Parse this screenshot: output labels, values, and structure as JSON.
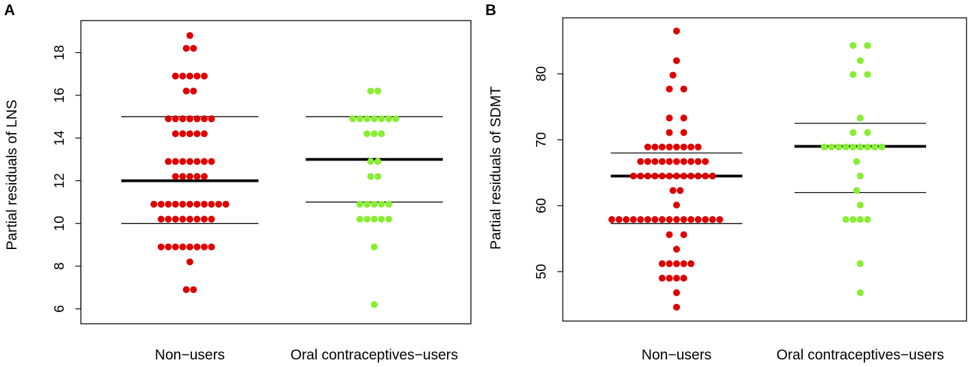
{
  "chart_data": [
    {
      "panel": "A",
      "type": "scatter",
      "ylabel": "Partial residuals of LNS",
      "xlabel": "",
      "ylim": [
        5.3,
        19.5
      ],
      "yticks": [
        6,
        8,
        10,
        12,
        14,
        16,
        18
      ],
      "categories": [
        "Non−users",
        "Oral contraceptives−users"
      ],
      "series": [
        {
          "name": "Non−users",
          "color": "#dd0000",
          "points": [
            {
              "x": 0.0,
              "y": 18.8
            },
            {
              "x": -0.25,
              "y": 18.2
            },
            {
              "x": 0.25,
              "y": 18.2
            },
            {
              "x": -1.0,
              "y": 16.9
            },
            {
              "x": -0.5,
              "y": 16.9
            },
            {
              "x": 0.0,
              "y": 16.9
            },
            {
              "x": 0.5,
              "y": 16.9
            },
            {
              "x": 1.0,
              "y": 16.9
            },
            {
              "x": -0.25,
              "y": 16.2
            },
            {
              "x": 0.25,
              "y": 16.2
            },
            {
              "x": -1.5,
              "y": 14.9
            },
            {
              "x": -1.0,
              "y": 14.9
            },
            {
              "x": -0.5,
              "y": 14.9
            },
            {
              "x": 0.0,
              "y": 14.9
            },
            {
              "x": 0.5,
              "y": 14.9
            },
            {
              "x": 1.0,
              "y": 14.9
            },
            {
              "x": 1.5,
              "y": 14.9
            },
            {
              "x": -1.0,
              "y": 14.2
            },
            {
              "x": -0.5,
              "y": 14.2
            },
            {
              "x": 0.0,
              "y": 14.2
            },
            {
              "x": 0.5,
              "y": 14.2
            },
            {
              "x": 1.0,
              "y": 14.2
            },
            {
              "x": -1.5,
              "y": 12.9
            },
            {
              "x": -1.0,
              "y": 12.9
            },
            {
              "x": -0.5,
              "y": 12.9
            },
            {
              "x": 0.0,
              "y": 12.9
            },
            {
              "x": 0.5,
              "y": 12.9
            },
            {
              "x": 1.0,
              "y": 12.9
            },
            {
              "x": 1.5,
              "y": 12.9
            },
            {
              "x": -1.0,
              "y": 12.2
            },
            {
              "x": -0.5,
              "y": 12.2
            },
            {
              "x": 0.0,
              "y": 12.2
            },
            {
              "x": 0.5,
              "y": 12.2
            },
            {
              "x": 1.0,
              "y": 12.2
            },
            {
              "x": -2.5,
              "y": 10.9
            },
            {
              "x": -2.0,
              "y": 10.9
            },
            {
              "x": -1.5,
              "y": 10.9
            },
            {
              "x": -1.0,
              "y": 10.9
            },
            {
              "x": -0.5,
              "y": 10.9
            },
            {
              "x": 0.0,
              "y": 10.9
            },
            {
              "x": 0.5,
              "y": 10.9
            },
            {
              "x": 1.0,
              "y": 10.9
            },
            {
              "x": 1.5,
              "y": 10.9
            },
            {
              "x": 2.0,
              "y": 10.9
            },
            {
              "x": 2.5,
              "y": 10.9
            },
            {
              "x": -2.0,
              "y": 10.2
            },
            {
              "x": -1.5,
              "y": 10.2
            },
            {
              "x": -1.0,
              "y": 10.2
            },
            {
              "x": -0.5,
              "y": 10.2
            },
            {
              "x": 0.0,
              "y": 10.2
            },
            {
              "x": 0.5,
              "y": 10.2
            },
            {
              "x": 1.0,
              "y": 10.2
            },
            {
              "x": 1.5,
              "y": 10.2
            },
            {
              "x": -2.0,
              "y": 8.9
            },
            {
              "x": -1.5,
              "y": 8.9
            },
            {
              "x": -1.0,
              "y": 8.9
            },
            {
              "x": -0.5,
              "y": 8.9
            },
            {
              "x": 0.0,
              "y": 8.9
            },
            {
              "x": 0.5,
              "y": 8.9
            },
            {
              "x": 1.0,
              "y": 8.9
            },
            {
              "x": 1.5,
              "y": 8.9
            },
            {
              "x": 0.0,
              "y": 8.2
            },
            {
              "x": -0.25,
              "y": 6.9
            },
            {
              "x": 0.25,
              "y": 6.9
            }
          ],
          "mean": 12.0,
          "upper": 15.0,
          "lower": 10.0
        },
        {
          "name": "Oral contraceptives−users",
          "color": "#88ee33",
          "points": [
            {
              "x": -0.25,
              "y": 16.2
            },
            {
              "x": 0.25,
              "y": 16.2
            },
            {
              "x": -1.5,
              "y": 14.9
            },
            {
              "x": -1.0,
              "y": 14.9
            },
            {
              "x": -0.5,
              "y": 14.9
            },
            {
              "x": 0.0,
              "y": 14.9
            },
            {
              "x": 0.5,
              "y": 14.9
            },
            {
              "x": 1.0,
              "y": 14.9
            },
            {
              "x": 1.5,
              "y": 14.9
            },
            {
              "x": -0.5,
              "y": 14.2
            },
            {
              "x": 0.0,
              "y": 14.2
            },
            {
              "x": 0.5,
              "y": 14.2
            },
            {
              "x": -0.25,
              "y": 12.9
            },
            {
              "x": 0.25,
              "y": 12.9
            },
            {
              "x": -0.25,
              "y": 12.2
            },
            {
              "x": 0.25,
              "y": 12.2
            },
            {
              "x": -1.0,
              "y": 10.9
            },
            {
              "x": -0.5,
              "y": 10.9
            },
            {
              "x": 0.0,
              "y": 10.9
            },
            {
              "x": 0.5,
              "y": 10.9
            },
            {
              "x": 1.0,
              "y": 10.9
            },
            {
              "x": -1.0,
              "y": 10.2
            },
            {
              "x": -0.5,
              "y": 10.2
            },
            {
              "x": 0.0,
              "y": 10.2
            },
            {
              "x": 0.5,
              "y": 10.2
            },
            {
              "x": 1.0,
              "y": 10.2
            },
            {
              "x": 0.0,
              "y": 8.9
            },
            {
              "x": 0.0,
              "y": 6.2
            }
          ],
          "mean": 13.0,
          "upper": 15.0,
          "lower": 11.0
        }
      ]
    },
    {
      "panel": "B",
      "type": "scatter",
      "ylabel": "Partial residuals of SDMT",
      "xlabel": "",
      "ylim": [
        42.5,
        88.5
      ],
      "yticks": [
        50,
        60,
        70,
        80
      ],
      "categories": [
        "Non−users",
        "Oral contraceptives−users"
      ],
      "series": [
        {
          "name": "Non−users",
          "color": "#dd0000",
          "points": [
            {
              "x": 0.0,
              "y": 86.5
            },
            {
              "x": 0.0,
              "y": 82.0
            },
            {
              "x": -0.25,
              "y": 79.8
            },
            {
              "x": -0.5,
              "y": 77.7
            },
            {
              "x": 0.5,
              "y": 77.7
            },
            {
              "x": -0.5,
              "y": 73.3
            },
            {
              "x": 0.5,
              "y": 73.3
            },
            {
              "x": -0.5,
              "y": 71.1
            },
            {
              "x": 0.5,
              "y": 71.1
            },
            {
              "x": -2.0,
              "y": 68.9
            },
            {
              "x": -1.5,
              "y": 68.9
            },
            {
              "x": -1.0,
              "y": 68.9
            },
            {
              "x": -0.5,
              "y": 68.9
            },
            {
              "x": 0.0,
              "y": 68.9
            },
            {
              "x": 0.5,
              "y": 68.9
            },
            {
              "x": 1.0,
              "y": 68.9
            },
            {
              "x": 1.5,
              "y": 68.9
            },
            {
              "x": -2.5,
              "y": 66.7
            },
            {
              "x": -2.0,
              "y": 66.7
            },
            {
              "x": -1.5,
              "y": 66.7
            },
            {
              "x": -1.0,
              "y": 66.7
            },
            {
              "x": -0.5,
              "y": 66.7
            },
            {
              "x": 0.0,
              "y": 66.7
            },
            {
              "x": 0.5,
              "y": 66.7
            },
            {
              "x": 1.0,
              "y": 66.7
            },
            {
              "x": 1.5,
              "y": 66.7
            },
            {
              "x": 2.0,
              "y": 66.7
            },
            {
              "x": -3.0,
              "y": 64.5
            },
            {
              "x": -2.5,
              "y": 64.5
            },
            {
              "x": -2.0,
              "y": 64.5
            },
            {
              "x": -1.5,
              "y": 64.5
            },
            {
              "x": -1.0,
              "y": 64.5
            },
            {
              "x": -0.5,
              "y": 64.5
            },
            {
              "x": 0.0,
              "y": 64.5
            },
            {
              "x": 0.5,
              "y": 64.5
            },
            {
              "x": 1.0,
              "y": 64.5
            },
            {
              "x": 1.5,
              "y": 64.5
            },
            {
              "x": 2.0,
              "y": 64.5
            },
            {
              "x": 2.5,
              "y": 64.5
            },
            {
              "x": -0.25,
              "y": 62.3
            },
            {
              "x": 0.25,
              "y": 62.3
            },
            {
              "x": 0.0,
              "y": 60.1
            },
            {
              "x": -4.5,
              "y": 57.9
            },
            {
              "x": -4.0,
              "y": 57.9
            },
            {
              "x": -3.5,
              "y": 57.9
            },
            {
              "x": -3.0,
              "y": 57.9
            },
            {
              "x": -2.5,
              "y": 57.9
            },
            {
              "x": -2.0,
              "y": 57.9
            },
            {
              "x": -1.5,
              "y": 57.9
            },
            {
              "x": -1.0,
              "y": 57.9
            },
            {
              "x": -0.5,
              "y": 57.9
            },
            {
              "x": 0.0,
              "y": 57.9
            },
            {
              "x": 0.5,
              "y": 57.9
            },
            {
              "x": 1.0,
              "y": 57.9
            },
            {
              "x": 1.5,
              "y": 57.9
            },
            {
              "x": 2.0,
              "y": 57.9
            },
            {
              "x": 2.5,
              "y": 57.9
            },
            {
              "x": 3.0,
              "y": 57.9
            },
            {
              "x": -0.5,
              "y": 55.6
            },
            {
              "x": 0.5,
              "y": 55.6
            },
            {
              "x": 0.0,
              "y": 53.4
            },
            {
              "x": -1.0,
              "y": 51.2
            },
            {
              "x": -0.5,
              "y": 51.2
            },
            {
              "x": 0.0,
              "y": 51.2
            },
            {
              "x": 0.5,
              "y": 51.2
            },
            {
              "x": 1.0,
              "y": 51.2
            },
            {
              "x": -1.0,
              "y": 49.0
            },
            {
              "x": -0.5,
              "y": 49.0
            },
            {
              "x": 0.0,
              "y": 49.0
            },
            {
              "x": 0.5,
              "y": 49.0
            },
            {
              "x": 0.0,
              "y": 46.8
            },
            {
              "x": 0.0,
              "y": 44.6
            }
          ],
          "mean": 64.5,
          "upper": 68.0,
          "lower": 57.3
        },
        {
          "name": "Oral contraceptives−users",
          "color": "#88ee33",
          "points": [
            {
              "x": -0.5,
              "y": 84.3
            },
            {
              "x": 0.5,
              "y": 84.3
            },
            {
              "x": 0.0,
              "y": 82.0
            },
            {
              "x": -0.5,
              "y": 79.9
            },
            {
              "x": 0.5,
              "y": 79.9
            },
            {
              "x": 0.0,
              "y": 73.3
            },
            {
              "x": -0.5,
              "y": 71.1
            },
            {
              "x": 0.5,
              "y": 71.1
            },
            {
              "x": -2.5,
              "y": 68.9
            },
            {
              "x": -2.0,
              "y": 68.9
            },
            {
              "x": -1.5,
              "y": 68.9
            },
            {
              "x": -1.0,
              "y": 68.9
            },
            {
              "x": -0.5,
              "y": 68.9
            },
            {
              "x": 0.0,
              "y": 68.9
            },
            {
              "x": 0.5,
              "y": 68.9
            },
            {
              "x": 1.0,
              "y": 68.9
            },
            {
              "x": 1.5,
              "y": 68.9
            },
            {
              "x": -0.25,
              "y": 66.7
            },
            {
              "x": 0.0,
              "y": 64.5
            },
            {
              "x": -0.25,
              "y": 62.3
            },
            {
              "x": 0.0,
              "y": 60.1
            },
            {
              "x": -1.0,
              "y": 57.9
            },
            {
              "x": -0.5,
              "y": 57.9
            },
            {
              "x": 0.0,
              "y": 57.9
            },
            {
              "x": 0.5,
              "y": 57.9
            },
            {
              "x": 0.0,
              "y": 51.2
            },
            {
              "x": 0.0,
              "y": 46.8
            }
          ],
          "mean": 69.0,
          "upper": 72.5,
          "lower": 62.0
        }
      ]
    }
  ]
}
